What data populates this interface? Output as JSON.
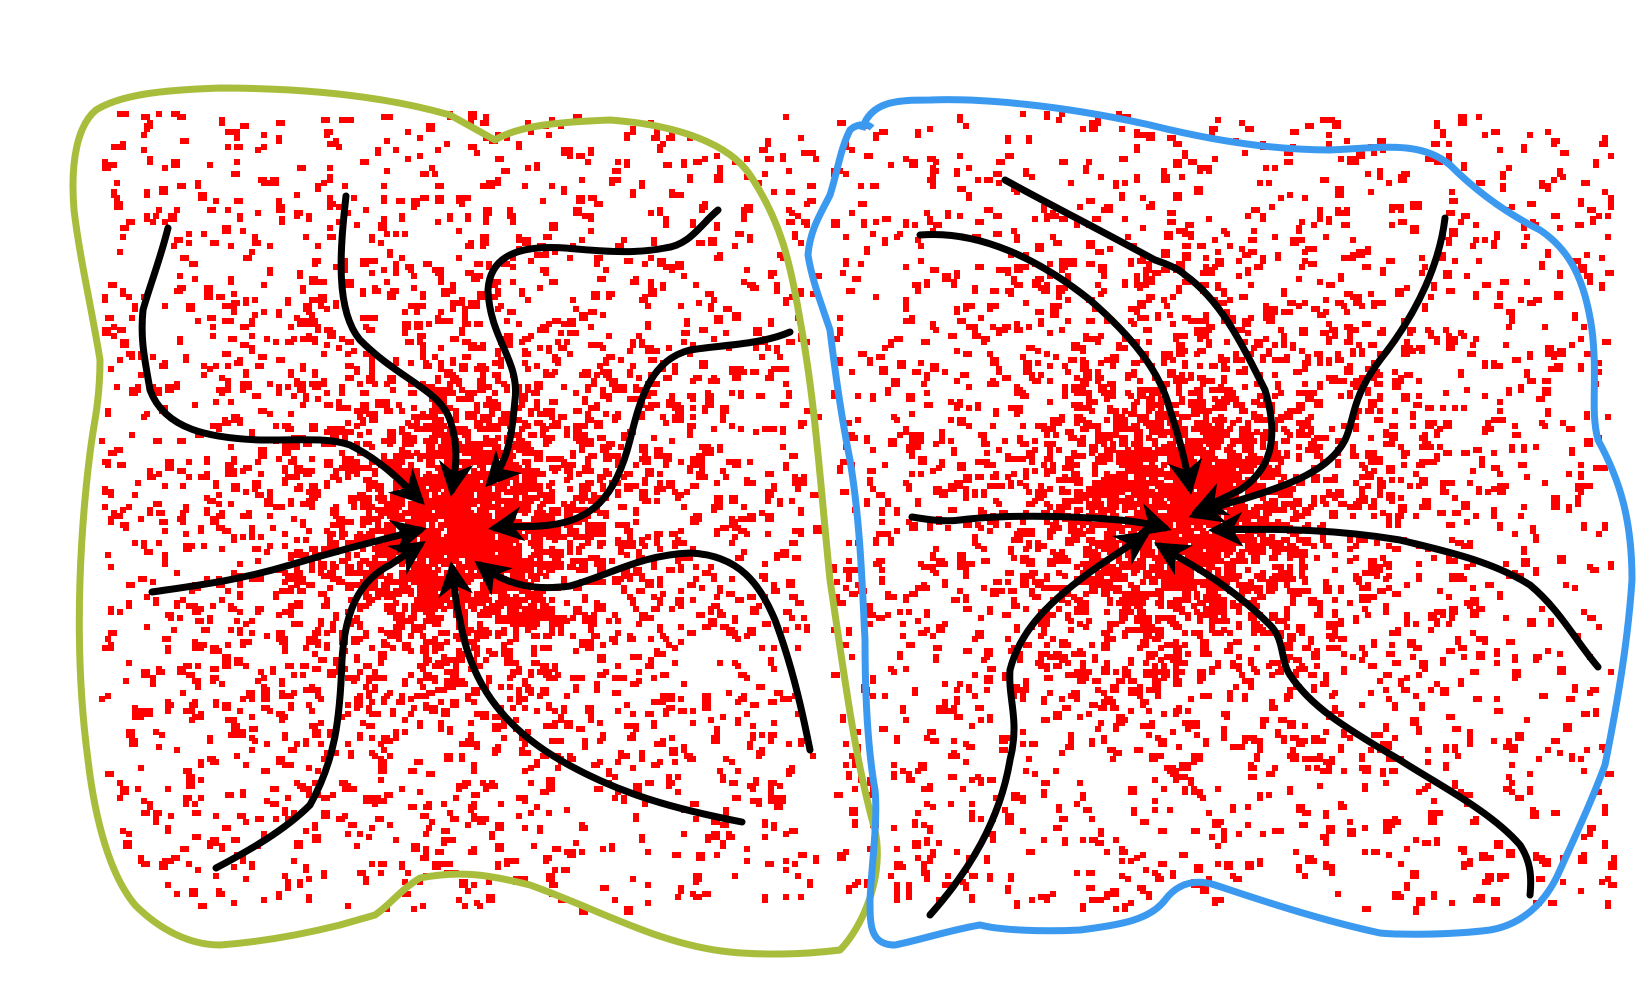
{
  "colors": {
    "background": "#ffffff",
    "dots": "#ff0000",
    "arrows": "#000000",
    "left_region_outline": "#a9bd3c",
    "right_region_outline": "#3b9af0"
  },
  "regions": [
    {
      "name": "left-basin",
      "outline_color_key": "left_region_outline",
      "arrow_count": 8
    },
    {
      "name": "right-basin",
      "outline_color_key": "right_region_outline",
      "arrow_count": 8
    }
  ],
  "icons": [
    "converging-arrow-icon"
  ]
}
